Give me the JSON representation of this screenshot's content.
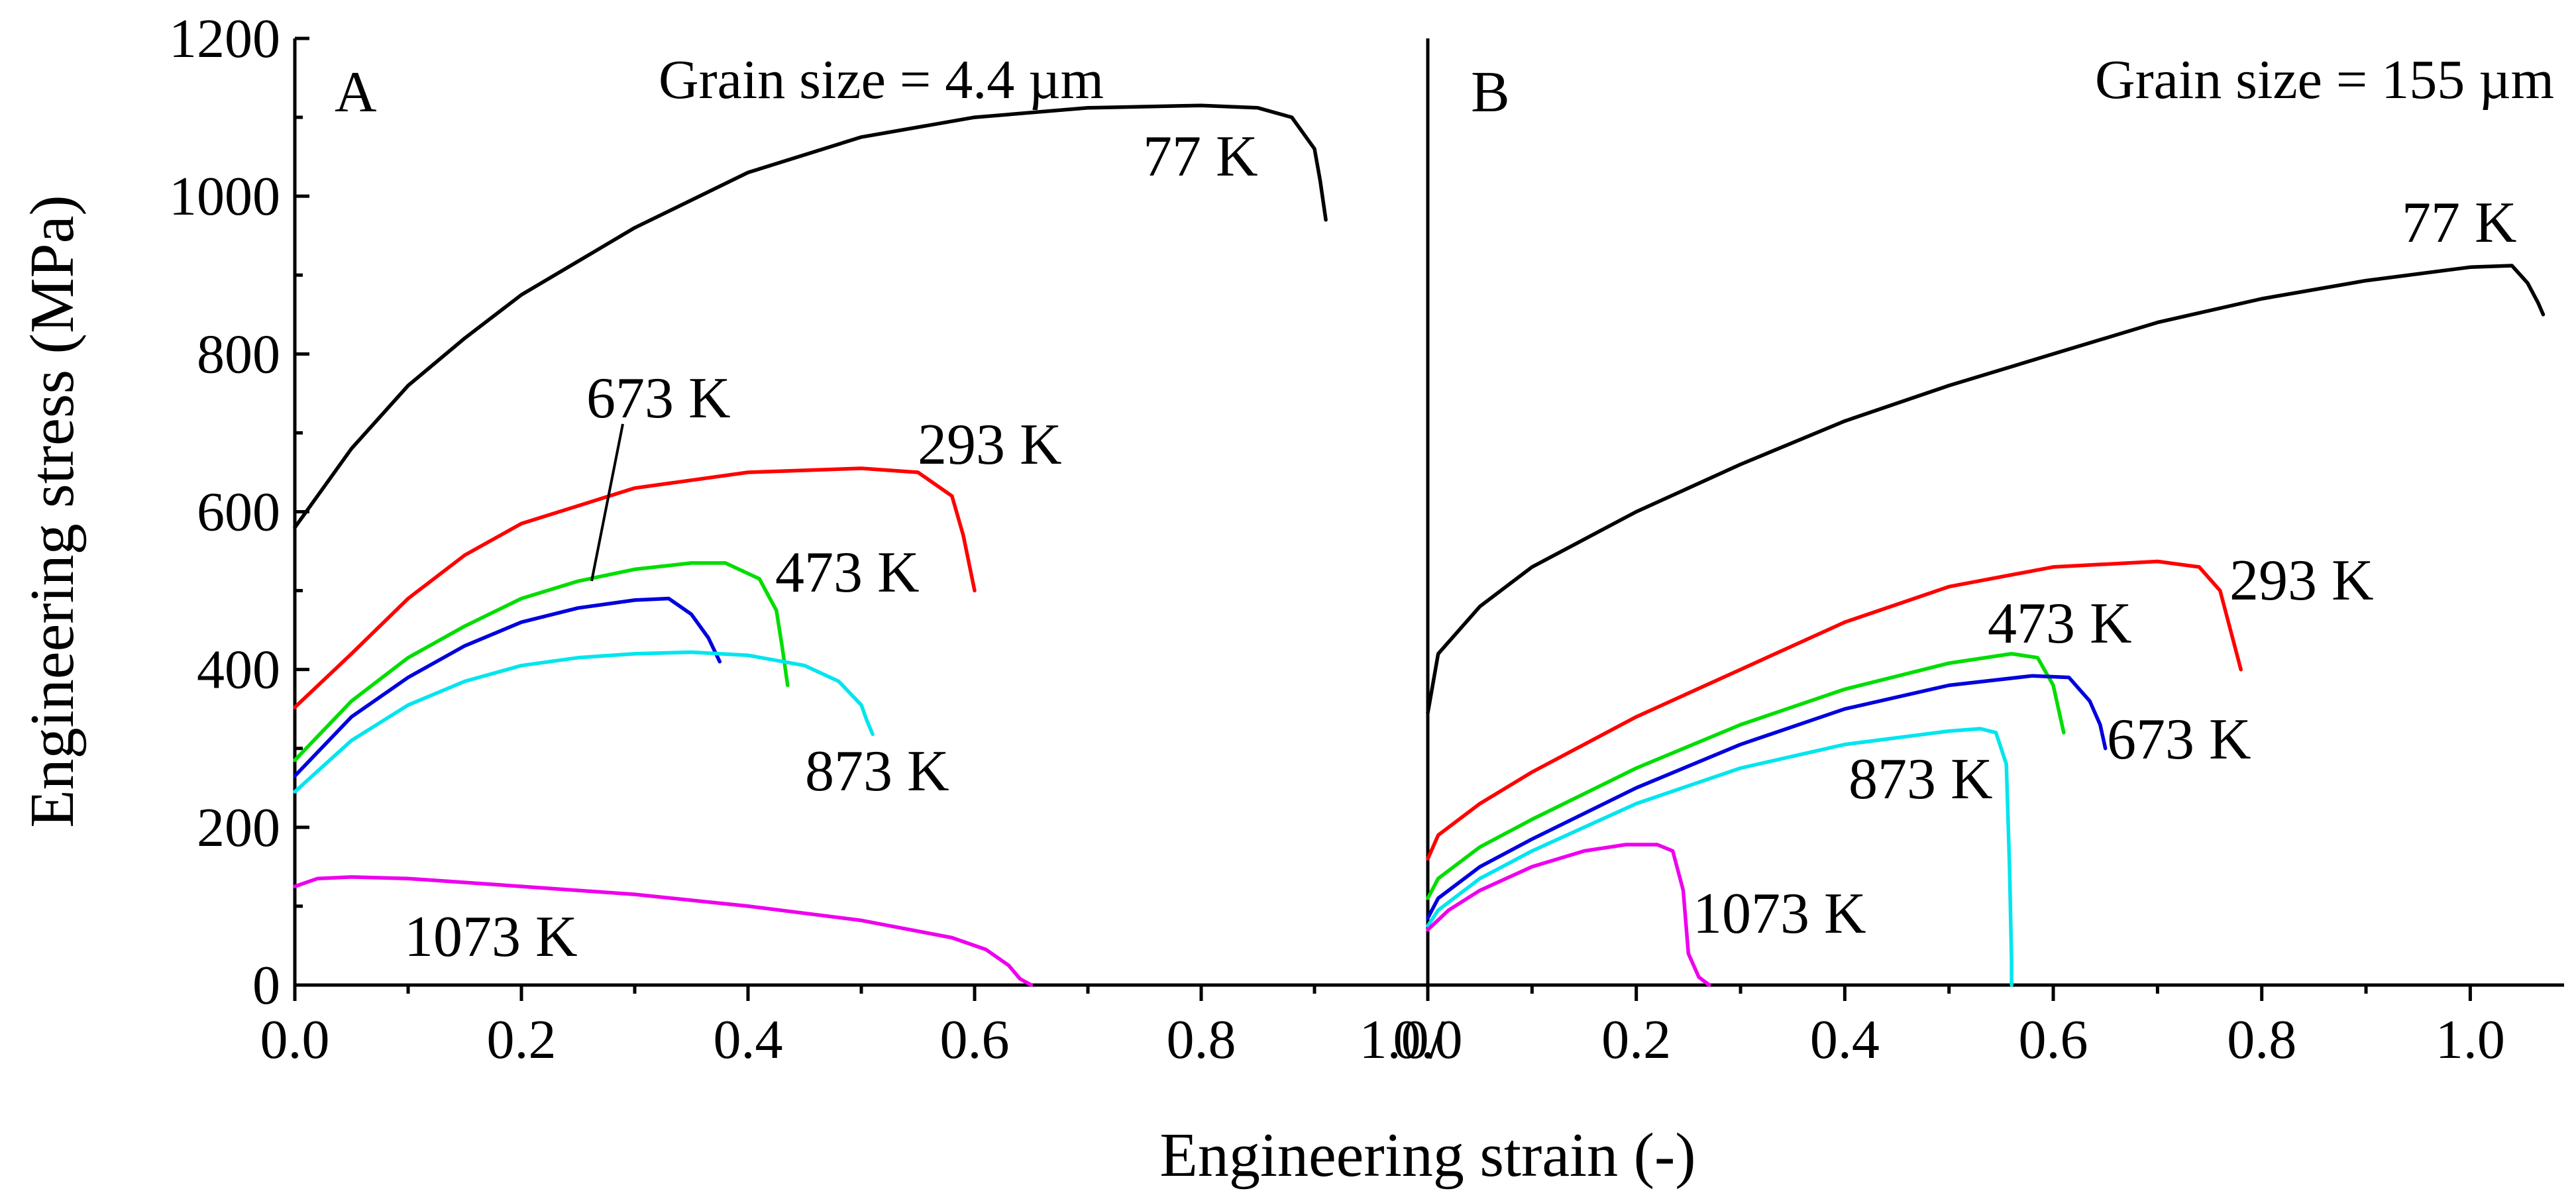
{
  "chart_data": [
    {
      "type": "line",
      "panel": "A",
      "title": "Grain size = 4.4 µm",
      "xlabel": "Engineering strain (-)",
      "ylabel": "Engineering stress (MPa)",
      "xlim": [
        0,
        1.0
      ],
      "ylim": [
        0,
        1200
      ],
      "x_ticks": [
        0.0,
        0.2,
        0.4,
        0.6,
        0.8,
        1.0
      ],
      "x_tick_labels": [
        "0.0",
        "0.2",
        "0.4",
        "0.6",
        "0.8",
        "1.0/"
      ],
      "y_ticks": [
        0,
        200,
        400,
        600,
        800,
        1000,
        1200
      ],
      "y_tick_labels": [
        "0",
        "200",
        "400",
        "600",
        "800",
        "1000",
        "1200"
      ],
      "series": [
        {
          "name": "77 K",
          "color": "#000000",
          "x": [
            0.0,
            0.02,
            0.05,
            0.1,
            0.15,
            0.2,
            0.3,
            0.4,
            0.5,
            0.6,
            0.7,
            0.8,
            0.85,
            0.88,
            0.9,
            0.905,
            0.91
          ],
          "y": [
            580,
            620,
            680,
            760,
            820,
            875,
            960,
            1030,
            1075,
            1100,
            1112,
            1115,
            1112,
            1100,
            1060,
            1020,
            970
          ]
        },
        {
          "name": "293 K",
          "color": "#ff0000",
          "x": [
            0.0,
            0.05,
            0.1,
            0.15,
            0.2,
            0.3,
            0.4,
            0.5,
            0.55,
            0.58,
            0.59,
            0.6
          ],
          "y": [
            352,
            420,
            490,
            545,
            585,
            630,
            650,
            655,
            650,
            620,
            570,
            500
          ]
        },
        {
          "name": "473 K",
          "color": "#00dd00",
          "x": [
            0.0,
            0.05,
            0.1,
            0.15,
            0.2,
            0.25,
            0.3,
            0.35,
            0.38,
            0.41,
            0.425,
            0.43,
            0.435
          ],
          "y": [
            285,
            360,
            415,
            455,
            490,
            512,
            527,
            535,
            535,
            515,
            475,
            430,
            380
          ]
        },
        {
          "name": "673 K",
          "color": "#0000dd",
          "x": [
            0.0,
            0.05,
            0.1,
            0.15,
            0.2,
            0.25,
            0.3,
            0.33,
            0.35,
            0.365,
            0.375
          ],
          "y": [
            265,
            340,
            390,
            430,
            460,
            478,
            488,
            490,
            470,
            440,
            410
          ]
        },
        {
          "name": "873 K",
          "color": "#00e5ee",
          "x": [
            0.0,
            0.05,
            0.1,
            0.15,
            0.2,
            0.25,
            0.3,
            0.35,
            0.4,
            0.45,
            0.48,
            0.5,
            0.505,
            0.51
          ],
          "y": [
            245,
            310,
            355,
            385,
            405,
            415,
            420,
            422,
            418,
            405,
            385,
            355,
            335,
            318
          ]
        },
        {
          "name": "1073 K",
          "color": "#ee00ee",
          "x": [
            0.0,
            0.02,
            0.05,
            0.1,
            0.2,
            0.3,
            0.4,
            0.5,
            0.58,
            0.61,
            0.63,
            0.64,
            0.65
          ],
          "y": [
            125,
            135,
            137,
            135,
            125,
            115,
            100,
            82,
            60,
            45,
            25,
            8,
            0
          ]
        }
      ],
      "annotations": [
        {
          "text": "A"
        },
        {
          "text": "77 K"
        },
        {
          "text": "293 K"
        },
        {
          "text": "473 K"
        },
        {
          "text": "673 K"
        },
        {
          "text": "873 K"
        },
        {
          "text": "1073 K"
        }
      ]
    },
    {
      "type": "line",
      "panel": "B",
      "title": "Grain size = 155 µm",
      "xlabel": "Engineering strain (-)",
      "ylabel": "Engineering stress (MPa)",
      "xlim": [
        0,
        1.1
      ],
      "ylim": [
        0,
        1200
      ],
      "x_ticks": [
        0.0,
        0.2,
        0.4,
        0.6,
        0.8,
        1.0
      ],
      "x_tick_labels": [
        "0.0",
        "0.2",
        "0.4",
        "0.6",
        "0.8",
        "1.0"
      ],
      "series": [
        {
          "name": "77 K",
          "color": "#000000",
          "x": [
            0.0,
            0.01,
            0.05,
            0.1,
            0.2,
            0.3,
            0.4,
            0.5,
            0.6,
            0.7,
            0.8,
            0.9,
            1.0,
            1.04,
            1.055,
            1.065,
            1.07
          ],
          "y": [
            345,
            420,
            480,
            530,
            600,
            660,
            715,
            760,
            800,
            840,
            870,
            893,
            910,
            912,
            890,
            865,
            850
          ]
        },
        {
          "name": "293 K",
          "color": "#ff0000",
          "x": [
            0.0,
            0.01,
            0.05,
            0.1,
            0.2,
            0.3,
            0.4,
            0.5,
            0.6,
            0.7,
            0.74,
            0.76,
            0.77,
            0.78
          ],
          "y": [
            160,
            190,
            230,
            270,
            340,
            400,
            460,
            505,
            530,
            537,
            530,
            500,
            450,
            400
          ]
        },
        {
          "name": "473 K",
          "color": "#00dd00",
          "x": [
            0.0,
            0.01,
            0.05,
            0.1,
            0.2,
            0.3,
            0.4,
            0.5,
            0.56,
            0.585,
            0.6,
            0.61
          ],
          "y": [
            110,
            135,
            175,
            210,
            275,
            330,
            375,
            408,
            420,
            415,
            380,
            320
          ]
        },
        {
          "name": "673 K",
          "color": "#0000dd",
          "x": [
            0.0,
            0.01,
            0.05,
            0.1,
            0.2,
            0.3,
            0.4,
            0.5,
            0.58,
            0.615,
            0.635,
            0.645,
            0.65
          ],
          "y": [
            85,
            110,
            150,
            185,
            250,
            305,
            350,
            380,
            392,
            390,
            360,
            330,
            300
          ]
        },
        {
          "name": "873 K",
          "color": "#00e5ee",
          "x": [
            0.0,
            0.01,
            0.05,
            0.1,
            0.2,
            0.3,
            0.4,
            0.5,
            0.53,
            0.545,
            0.555,
            0.558,
            0.56,
            0.56
          ],
          "y": [
            75,
            95,
            135,
            170,
            230,
            275,
            305,
            322,
            325,
            320,
            280,
            150,
            30,
            0
          ]
        },
        {
          "name": "1073 K",
          "color": "#ee00ee",
          "x": [
            0.0,
            0.02,
            0.05,
            0.1,
            0.15,
            0.19,
            0.22,
            0.235,
            0.245,
            0.25,
            0.26,
            0.27
          ],
          "y": [
            70,
            95,
            120,
            150,
            170,
            178,
            178,
            170,
            120,
            40,
            10,
            0
          ]
        }
      ],
      "annotations": [
        {
          "text": "B"
        },
        {
          "text": "77 K"
        },
        {
          "text": "293 K"
        },
        {
          "text": "473 K"
        },
        {
          "text": "673 K"
        },
        {
          "text": "873 K"
        },
        {
          "text": "1073 K"
        }
      ]
    }
  ]
}
